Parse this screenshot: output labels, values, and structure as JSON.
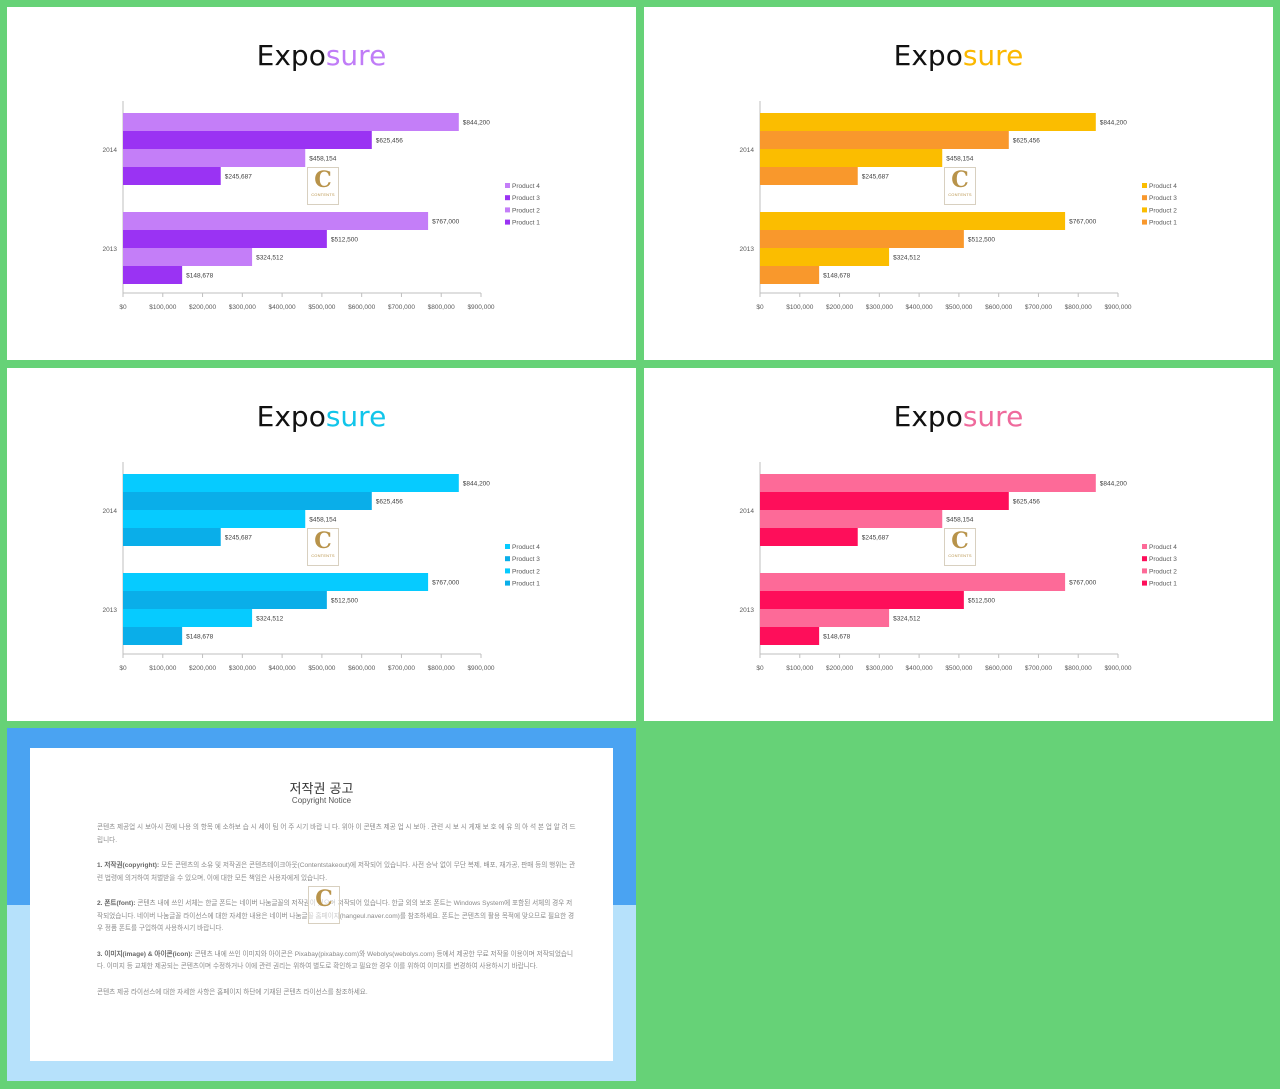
{
  "slides": [
    {
      "title_part1": "Expo",
      "title_part2": "sure",
      "accent": "#c07cf7",
      "colors": {
        "Product 1": "#9a33f3",
        "Product 2": "#c47ef8",
        "Product 3": "#9a33f3",
        "Product 4": "#c47ef8"
      }
    },
    {
      "title_part1": "Expo",
      "title_part2": "sure",
      "accent": "#fbb800",
      "colors": {
        "Product 1": "#f9982c",
        "Product 2": "#fbbd00",
        "Product 3": "#f9982c",
        "Product 4": "#fbbd00"
      }
    },
    {
      "title_part1": "Expo",
      "title_part2": "sure",
      "accent": "#11c5ea",
      "colors": {
        "Product 1": "#0aaee9",
        "Product 2": "#06cbff",
        "Product 3": "#0aaee9",
        "Product 4": "#06cbff"
      }
    },
    {
      "title_part1": "Expo",
      "title_part2": "sure",
      "accent": "#ef6a9c",
      "colors": {
        "Product 1": "#fe0e5a",
        "Product 2": "#fd6a98",
        "Product 3": "#fe0e5a",
        "Product 4": "#fd6a98"
      }
    }
  ],
  "chart_data": {
    "type": "bar",
    "orientation": "horizontal",
    "categories": [
      "2013",
      "2014"
    ],
    "series": [
      {
        "name": "Product 1",
        "values": [
          148678,
          245687
        ],
        "labels": [
          "$148,678",
          "$245,687"
        ]
      },
      {
        "name": "Product 2",
        "values": [
          324512,
          458154
        ],
        "labels": [
          "$324,512",
          "$458,154"
        ]
      },
      {
        "name": "Product 3",
        "values": [
          512500,
          625456
        ],
        "labels": [
          "$512,500",
          "$625,456"
        ]
      },
      {
        "name": "Product 4",
        "values": [
          767000,
          844200
        ],
        "labels": [
          "$767,000",
          "$844,200"
        ]
      }
    ],
    "xlim": [
      0,
      900000
    ],
    "x_ticks": [
      "$0",
      "$100,000",
      "$200,000",
      "$300,000",
      "$400,000",
      "$500,000",
      "$600,000",
      "$700,000",
      "$800,000",
      "$900,000"
    ],
    "legend": [
      "Product 4",
      "Product 3",
      "Product 2",
      "Product 1"
    ],
    "legend_position": "right",
    "grid": false
  },
  "watermark": {
    "letter": "C",
    "text": "CONTENTS"
  },
  "notice": {
    "title": "저작권 공고",
    "subtitle": "Copyright Notice",
    "intro": "콘텐츠 제공업 시 보아시 전에 나용 의 항목 에 소하보 습 시 세이 팀 어 주 시기 바랍 니 다. 위아 이 콘텐츠 제공 업 시 보아 . 관련 시 보 시 게재 보 호 에 유 의 아 석 본 업 알 려 드 립니다.",
    "p1_head": "1. 저작권(copyright):",
    "p1_body": "모든 콘텐츠의 소유 및 저작권은 콘텐츠테이크아웃(Contentstakeout)에 저작되어 있습니다. 사전 승낙 없이 무단 복제, 배포, 재가공, 판매 등의 행위는 관련 법령에 의거하여 처벌받을 수 있으며, 이에 대한 모든 책임은 사용자에게 있습니다.",
    "p2_head": "2. 폰트(font):",
    "p2_body": "콘텐츠 내에 쓰인 서체는 한글 폰트는 네이버 나눔글꼴의 저작권이 있으며 저작되어 있습니다. 한글 외의 보조 폰트는 Windows System에 포함된 서체의 경우 저작되었습니다. 네이버 나눔글꼴 라이선스에 대한 자세한 내용은 네이버 나눔글꼴 홈페이지(hangeul.naver.com)를 참조하세요. 폰트는 콘텐츠의 활용 목적에 맞으므로 필요한 경우 정품 폰트를 구입하여 사용하시기 바랍니다.",
    "p3_head": "3. 이미지(image) & 아이콘(icon):",
    "p3_body": "콘텐츠 내에 쓰인 이미지와 아이콘은 Pixabay(pixabay.com)와 Webolys(webolys.com) 등에서 제공한 무료 저작물 이용이며 저작되었습니다. 이미지 등 교체한 제공되는 콘텐츠이며 수정하거나 이에 관련 권리는 위하여 별도로 확인하고 필요한 경우 이를 위하여 이미지를 변경하여 사용하시기 바랍니다.",
    "outro": "콘텐츠 제공 라이선스에 대한 자세한 사항은 홈페이지 하단에 기재된 콘텐츠 라이선스를 참조하세요."
  }
}
